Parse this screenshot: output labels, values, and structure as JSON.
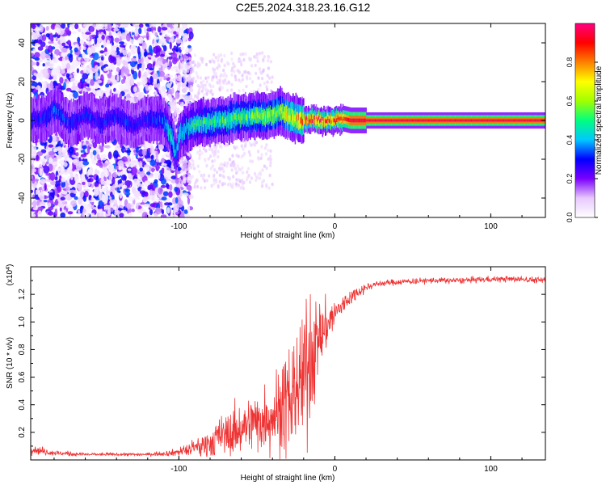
{
  "figure_title": "C2E5.2024.318.23.16.G12",
  "chart_data": [
    {
      "type": "heatmap",
      "xlabel": "Height of straight line (km)",
      "ylabel": "Frequency (Hz)",
      "xlim": [
        -195,
        135
      ],
      "ylim": [
        -50,
        50
      ],
      "x_ticks": [
        -100,
        0,
        100
      ],
      "x_tick_labels": [
        "-100",
        "0",
        "100"
      ],
      "y_ticks": [
        -40,
        -20,
        0,
        20,
        40
      ],
      "y_tick_labels": [
        "-40",
        "-20",
        "0",
        "20",
        "40"
      ],
      "grid": false,
      "colorbar": {
        "label": "Normalized spectral amplitude",
        "range": [
          0.0,
          1.0
        ],
        "ticks": [
          0.0,
          0.2,
          0.4,
          0.6,
          0.8
        ],
        "tick_labels": [
          "0.0",
          "0.2",
          "0.4",
          "0.6",
          "0.8"
        ],
        "colors": [
          "#ffffff",
          "#e8c8ff",
          "#7a00ff",
          "#0000ff",
          "#00c8ff",
          "#00ff80",
          "#a0ff00",
          "#ffff00",
          "#ff8000",
          "#ff0000",
          "#ff0080"
        ]
      },
      "signal_track": {
        "description_points_x": [
          -195,
          -185,
          -180,
          -170,
          -160,
          -150,
          -140,
          -130,
          -120,
          -110,
          -105,
          -102,
          -100,
          -95,
          -90,
          -85,
          -80,
          -75,
          -70,
          -65,
          -60,
          -55,
          -50,
          -45,
          -40,
          -35,
          -30,
          -25,
          -20,
          -15,
          -10,
          -5,
          0,
          5,
          10,
          20,
          40,
          60,
          80,
          100,
          120,
          135
        ],
        "center_freq_hz": [
          0,
          2,
          6,
          -2,
          3,
          -1,
          2,
          -3,
          1,
          0,
          -8,
          -18,
          -8,
          -4,
          -2,
          -1,
          -1,
          0,
          0,
          1,
          2,
          2,
          3,
          2,
          3,
          5,
          2,
          1,
          0,
          1,
          0,
          0,
          0,
          1,
          0,
          0,
          0,
          0,
          0,
          0,
          0,
          0
        ],
        "peak_amplitude": [
          0.3,
          0.3,
          0.35,
          0.3,
          0.3,
          0.3,
          0.3,
          0.3,
          0.3,
          0.35,
          0.5,
          0.4,
          0.45,
          0.45,
          0.5,
          0.5,
          0.5,
          0.5,
          0.55,
          0.55,
          0.55,
          0.55,
          0.6,
          0.6,
          0.6,
          0.6,
          0.7,
          0.75,
          0.85,
          0.9,
          0.9,
          0.85,
          0.9,
          0.85,
          0.95,
          0.95,
          0.95,
          0.95,
          0.95,
          0.95,
          0.95,
          0.95
        ]
      }
    },
    {
      "type": "line",
      "xlabel": "Height of straight line (km)",
      "ylabel": "SNR (10 * v/v)",
      "y_multiplier_label": "(x10",
      "y_multiplier_exp": "4",
      "y_multiplier_close": ")",
      "xlim": [
        -195,
        135
      ],
      "ylim": [
        0.0,
        1.4
      ],
      "x_ticks": [
        -100,
        0,
        100
      ],
      "x_tick_labels": [
        "-100",
        "0",
        "100"
      ],
      "y_ticks": [
        0.2,
        0.4,
        0.6,
        0.8,
        1.0,
        1.2
      ],
      "y_tick_labels": [
        "0.2",
        "0.4",
        "0.6",
        "0.8",
        "1.0",
        "1.2"
      ],
      "grid": false,
      "series": [
        {
          "color": "#ee3333",
          "x": [
            -195,
            -180,
            -160,
            -140,
            -120,
            -105,
            -95,
            -85,
            -75,
            -65,
            -55,
            -45,
            -35,
            -30,
            -25,
            -20,
            -15,
            -10,
            -5,
            0,
            5,
            10,
            15,
            20,
            25,
            30,
            40,
            60,
            80,
            100,
            120,
            135
          ],
          "y": [
            0.08,
            0.05,
            0.04,
            0.04,
            0.04,
            0.05,
            0.07,
            0.1,
            0.16,
            0.2,
            0.26,
            0.3,
            0.36,
            0.42,
            0.5,
            0.62,
            0.75,
            0.88,
            0.98,
            1.06,
            1.12,
            1.18,
            1.22,
            1.25,
            1.27,
            1.28,
            1.29,
            1.3,
            1.3,
            1.31,
            1.31,
            1.3
          ],
          "noise": [
            0.03,
            0.02,
            0.01,
            0.01,
            0.01,
            0.02,
            0.04,
            0.08,
            0.12,
            0.16,
            0.18,
            0.22,
            0.3,
            0.35,
            0.4,
            0.45,
            0.4,
            0.25,
            0.16,
            0.1,
            0.07,
            0.05,
            0.04,
            0.03,
            0.02,
            0.02,
            0.02,
            0.02,
            0.02,
            0.02,
            0.02,
            0.02
          ]
        }
      ]
    }
  ]
}
